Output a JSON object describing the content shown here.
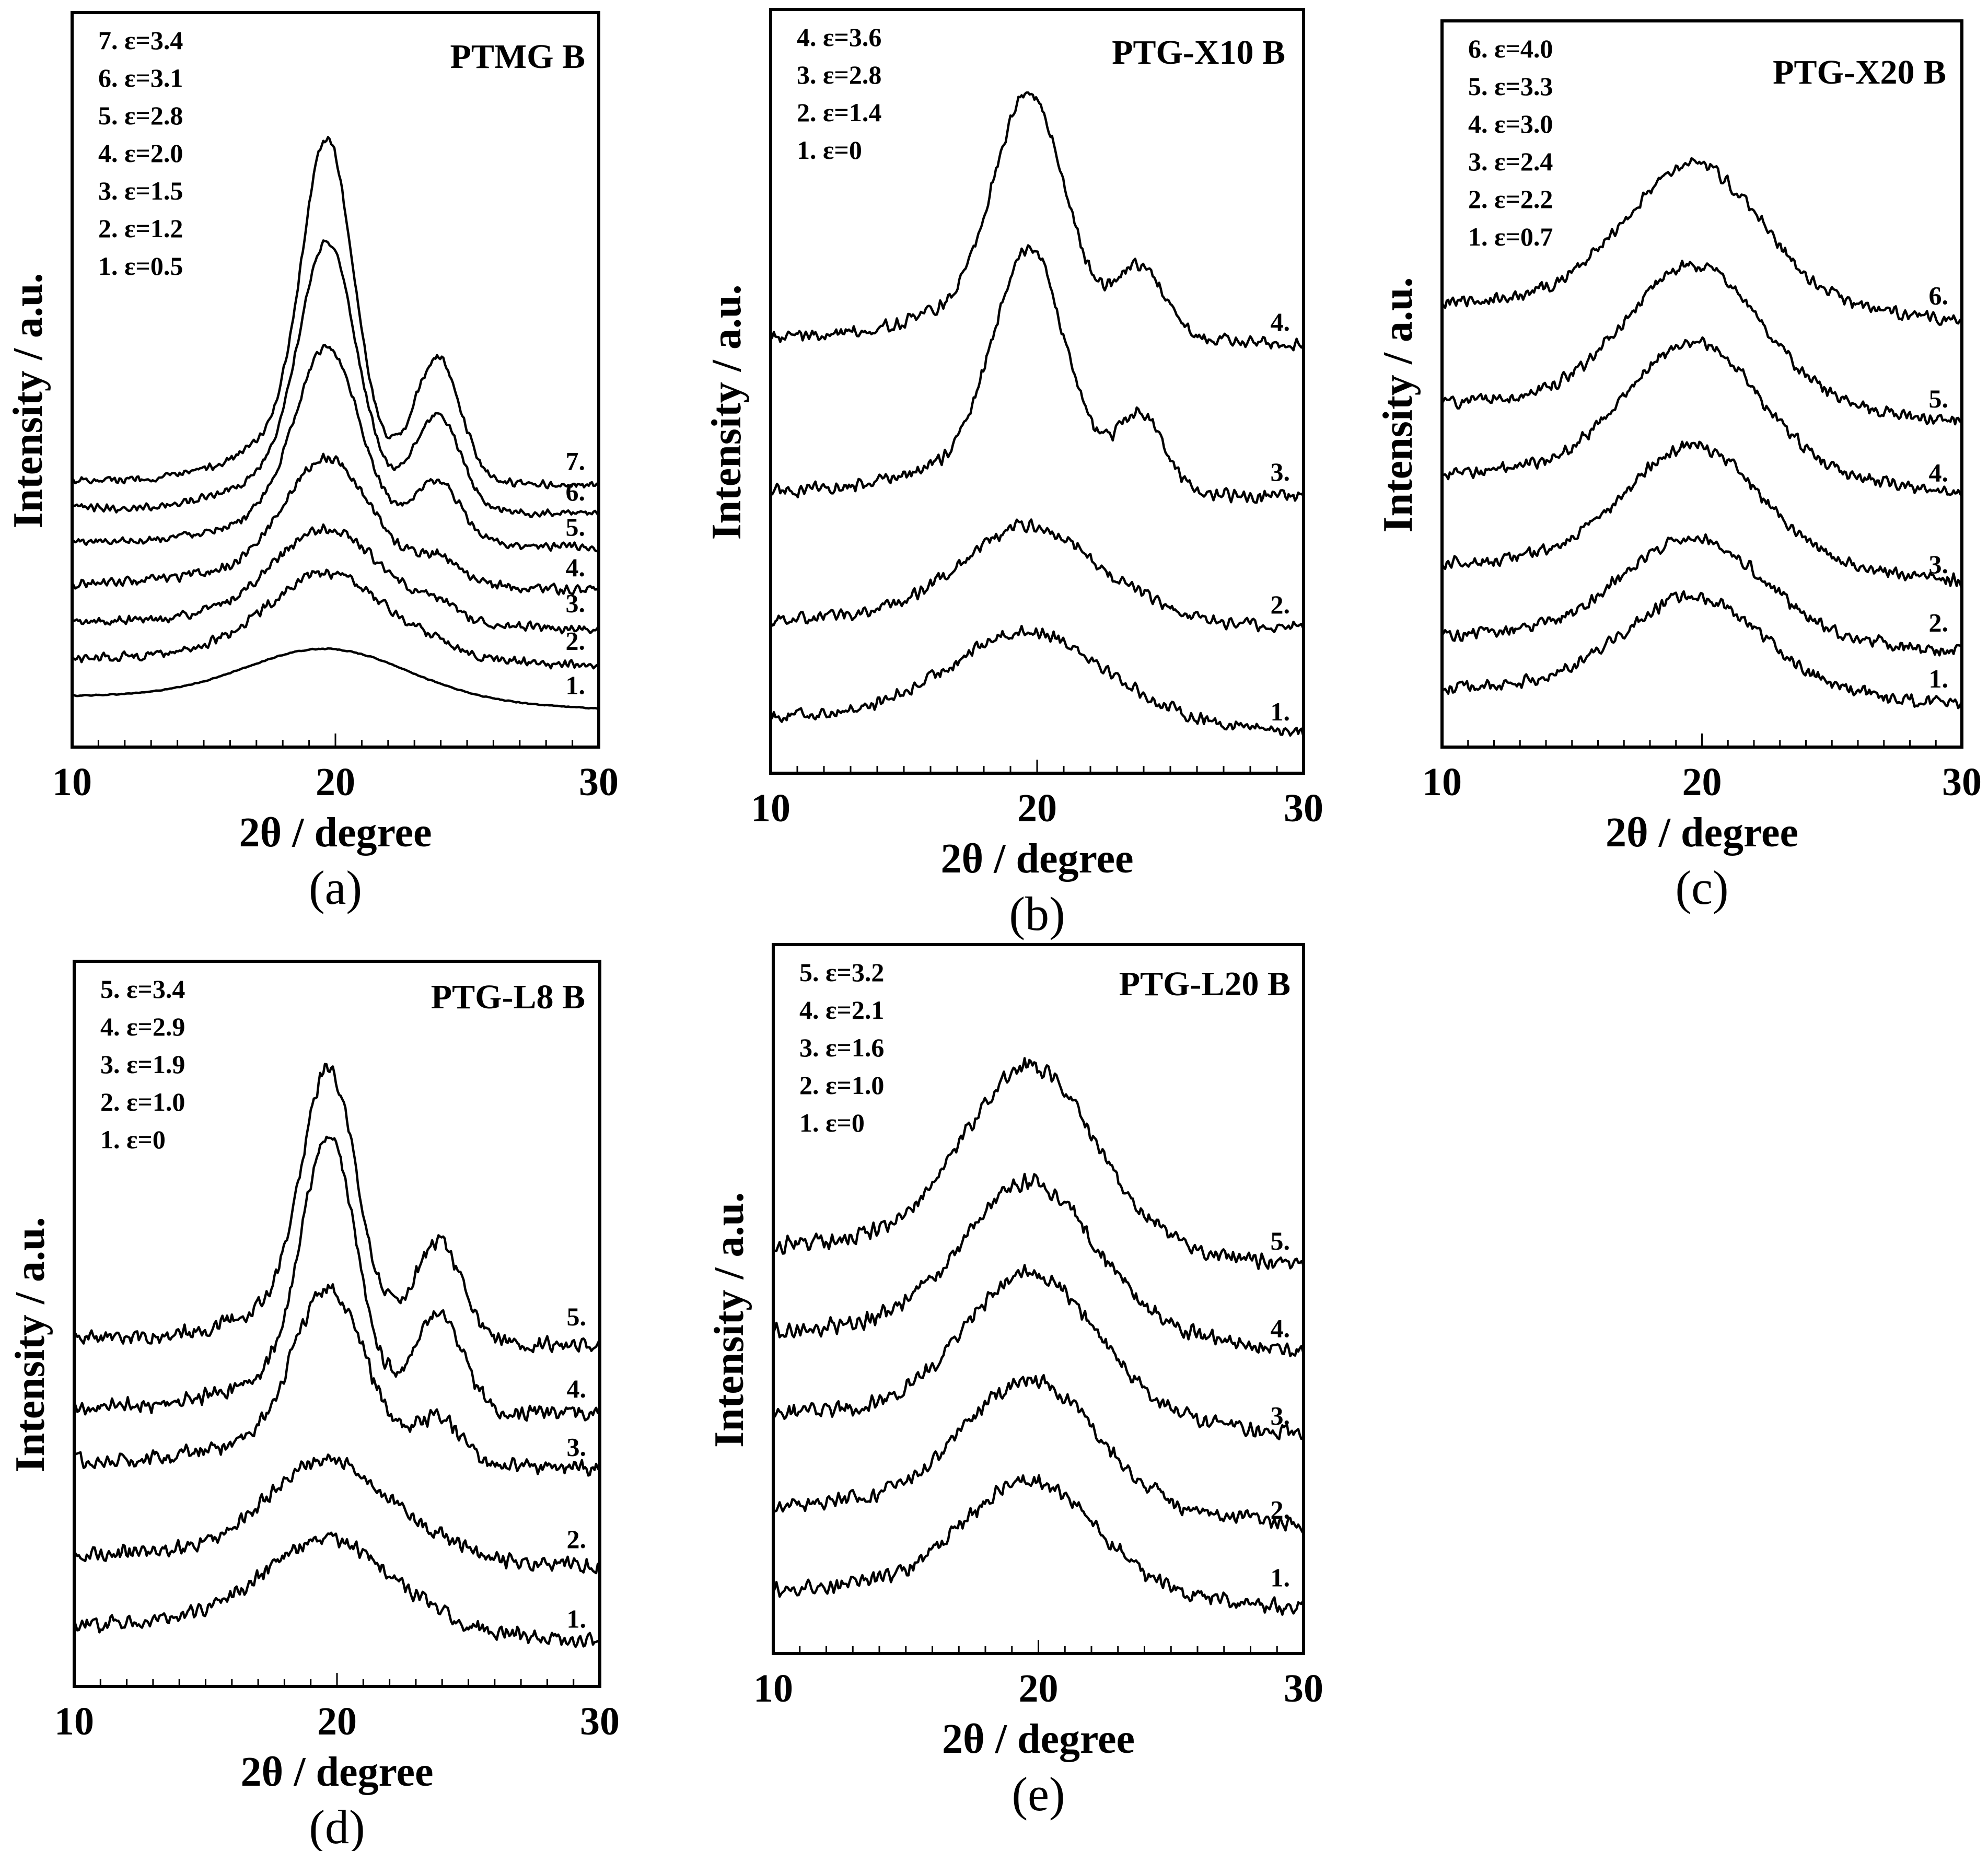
{
  "chart_data": [
    {
      "id": "a",
      "type": "line",
      "title": "PTMG B",
      "panel_label": "(a)",
      "xlabel": "2θ / degree",
      "ylabel": "Intensity / a.u.",
      "xlim": [
        10,
        30
      ],
      "xticks": [
        "10",
        "20",
        "30"
      ],
      "series": [
        {
          "name": "1. ε=0.5",
          "label": "1.",
          "offset": 0.0,
          "peak1": 1.0,
          "width1": 3.0,
          "peak2": 0.0,
          "noise": 0.012
        },
        {
          "name": "2. ε=1.2",
          "label": "2.",
          "offset": 0.8,
          "peak1": 1.6,
          "width1": 2.2,
          "peak2": 0.15,
          "noise": 0.12
        },
        {
          "name": "3. ε=1.5",
          "label": "3.",
          "offset": 1.55,
          "peak1": 1.75,
          "width1": 2.0,
          "peak2": 0.25,
          "noise": 0.12
        },
        {
          "name": "4. ε=2.0",
          "label": "4.",
          "offset": 2.4,
          "peak1": 2.3,
          "width1": 1.6,
          "peak2": 0.45,
          "noise": 0.12
        },
        {
          "name": "5. ε=2.8",
          "label": "5.",
          "offset": 3.3,
          "peak1": 3.5,
          "width1": 1.2,
          "peak2": 1.2,
          "noise": 0.1
        },
        {
          "name": "6. ε=3.1",
          "label": "6.",
          "offset": 4.0,
          "peak1": 4.8,
          "width1": 1.05,
          "peak2": 1.9,
          "noise": 0.1
        },
        {
          "name": "7. ε=3.4",
          "label": "7.",
          "offset": 4.6,
          "peak1": 6.1,
          "width1": 0.95,
          "peak2": 2.5,
          "noise": 0.1
        }
      ],
      "legend": [
        "7. ε=3.4",
        "6. ε=3.1",
        "5. ε=2.8",
        "4. ε=2.0",
        "3. ε=1.5",
        "2. ε=1.2",
        "1. ε=0.5"
      ]
    },
    {
      "id": "b",
      "type": "line",
      "title": "PTG-X10 B",
      "panel_label": "(b)",
      "xlabel": "2θ / degree",
      "ylabel": "Intensity / a.u.",
      "xlim": [
        10,
        30
      ],
      "xticks": [
        "10",
        "20",
        "30"
      ],
      "series": [
        {
          "name": "1. ε=0",
          "label": "1.",
          "offset": 0.0,
          "peak1": 1.5,
          "width1": 2.8,
          "peak2": 0.0,
          "noise": 0.14
        },
        {
          "name": "2. ε=1.4",
          "label": "2.",
          "offset": 1.8,
          "peak1": 1.55,
          "width1": 2.4,
          "peak2": 0.1,
          "noise": 0.14
        },
        {
          "name": "3. ε=2.8",
          "label": "3.",
          "offset": 4.2,
          "peak1": 3.8,
          "width1": 1.3,
          "peak2": 1.3,
          "noise": 0.14
        },
        {
          "name": "4. ε=3.6",
          "label": "4.",
          "offset": 7.0,
          "peak1": 3.8,
          "width1": 1.3,
          "peak2": 1.2,
          "noise": 0.14
        }
      ],
      "legend": [
        "4. ε=3.6",
        "3. ε=2.8",
        "2. ε=1.4",
        "1. ε=0"
      ]
    },
    {
      "id": "c",
      "type": "line",
      "title": "PTG-X20 B",
      "panel_label": "(c)",
      "xlabel": "2θ / degree",
      "ylabel": "Intensity / a.u.",
      "xlim": [
        10,
        30
      ],
      "xticks": [
        "10",
        "20",
        "30"
      ],
      "series": [
        {
          "name": "1. ε=0.7",
          "label": "1.",
          "offset": 0.0,
          "peak1": 1.5,
          "width1": 2.6,
          "peak2": 0.0,
          "noise": 0.13
        },
        {
          "name": "2. ε=2.2",
          "label": "2.",
          "offset": 0.9,
          "peak1": 1.6,
          "width1": 2.6,
          "peak2": 0.0,
          "noise": 0.13
        },
        {
          "name": "3. ε=2.4",
          "label": "3.",
          "offset": 2.1,
          "peak1": 1.9,
          "width1": 2.5,
          "peak2": 0.0,
          "noise": 0.13
        },
        {
          "name": "4. ε=3.0",
          "label": "4.",
          "offset": 3.6,
          "peak1": 2.1,
          "width1": 2.5,
          "peak2": 0.0,
          "noise": 0.13
        },
        {
          "name": "5. ε=3.3",
          "label": "5.",
          "offset": 4.8,
          "peak1": 2.2,
          "width1": 2.5,
          "peak2": 0.0,
          "noise": 0.13
        },
        {
          "name": "6. ε=4.0",
          "label": "6.",
          "offset": 6.5,
          "peak1": 2.2,
          "width1": 2.5,
          "peak2": 0.0,
          "noise": 0.13
        }
      ],
      "legend": [
        "6. ε=4.0",
        "5. ε=3.3",
        "4. ε=3.0",
        "3. ε=2.4",
        "2. ε=2.2",
        "1. ε=0.7"
      ]
    },
    {
      "id": "d",
      "type": "line",
      "title": "PTG-L8 B",
      "panel_label": "(d)",
      "xlabel": "2θ / degree",
      "ylabel": "Intensity / a.u.",
      "xlim": [
        10,
        30
      ],
      "xticks": [
        "10",
        "20",
        "30"
      ],
      "series": [
        {
          "name": "1. ε=0",
          "label": "1.",
          "offset": 0.0,
          "peak1": 1.2,
          "width1": 2.4,
          "peak2": 0.0,
          "noise": 0.14
        },
        {
          "name": "2. ε=1.0",
          "label": "2.",
          "offset": 1.0,
          "peak1": 1.3,
          "width1": 2.2,
          "peak2": 0.1,
          "noise": 0.14
        },
        {
          "name": "3. ε=1.9",
          "label": "3.",
          "offset": 2.45,
          "peak1": 2.2,
          "width1": 1.3,
          "peak2": 0.6,
          "noise": 0.14
        },
        {
          "name": "4. ε=2.9",
          "label": "4.",
          "offset": 3.25,
          "peak1": 3.4,
          "width1": 1.0,
          "peak2": 1.4,
          "noise": 0.14
        },
        {
          "name": "5. ε=3.4",
          "label": "5.",
          "offset": 4.25,
          "peak1": 3.4,
          "width1": 1.0,
          "peak2": 1.4,
          "noise": 0.14
        }
      ],
      "legend": [
        "5. ε=3.4",
        "4. ε=2.9",
        "3. ε=1.9",
        "2. ε=1.0",
        "1. ε=0"
      ]
    },
    {
      "id": "e",
      "type": "line",
      "title": "PTG-L20 B",
      "panel_label": "(e)",
      "xlabel": "2θ / degree",
      "ylabel": "Intensity / a.u.",
      "xlim": [
        10,
        30
      ],
      "xticks": [
        "10",
        "20",
        "30"
      ],
      "series": [
        {
          "name": "1. ε=0",
          "label": "1.",
          "offset": 0.0,
          "peak1": 1.5,
          "width1": 2.4,
          "peak2": 0.0,
          "noise": 0.14
        },
        {
          "name": "2. ε=1.0",
          "label": "2.",
          "offset": 1.2,
          "peak1": 1.7,
          "width1": 2.4,
          "peak2": 0.0,
          "noise": 0.14
        },
        {
          "name": "3. ε=1.6",
          "label": "3.",
          "offset": 2.5,
          "peak1": 1.9,
          "width1": 2.4,
          "peak2": 0.0,
          "noise": 0.14
        },
        {
          "name": "4. ε=2.1",
          "label": "4.",
          "offset": 3.7,
          "peak1": 2.0,
          "width1": 2.4,
          "peak2": 0.0,
          "noise": 0.14
        },
        {
          "name": "5. ε=3.2",
          "label": "5.",
          "offset": 4.9,
          "peak1": 2.4,
          "width1": 2.4,
          "peak2": 0.0,
          "noise": 0.14
        }
      ],
      "legend": [
        "5. ε=3.2",
        "4. ε=2.1",
        "3. ε=1.6",
        "2. ε=1.0",
        "1. ε=0"
      ]
    }
  ]
}
